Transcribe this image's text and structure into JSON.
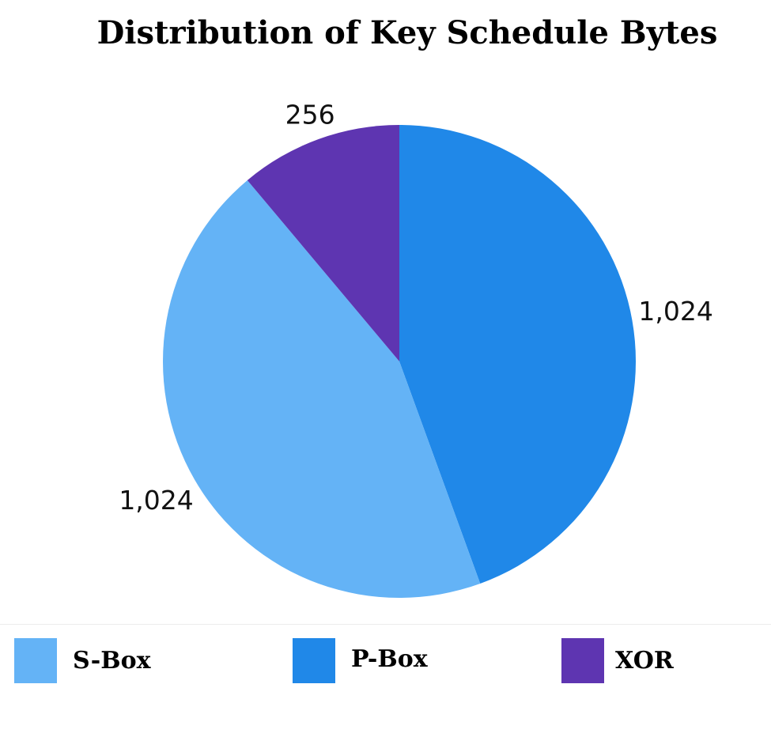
{
  "chart_data": {
    "type": "pie",
    "title": "Distribution of Key Schedule Bytes",
    "slices": [
      {
        "name": "S-Box",
        "value": 1024,
        "label": "1,024",
        "color": "#64b3f6"
      },
      {
        "name": "P-Box",
        "value": 1024,
        "label": "1,024",
        "color": "#2088e8"
      },
      {
        "name": "XOR",
        "value": 256,
        "label": "256",
        "color": "#5e35b1"
      }
    ],
    "start_angle": "top, clockwise: P-Box, S-Box, XOR",
    "legend_position": "bottom"
  }
}
